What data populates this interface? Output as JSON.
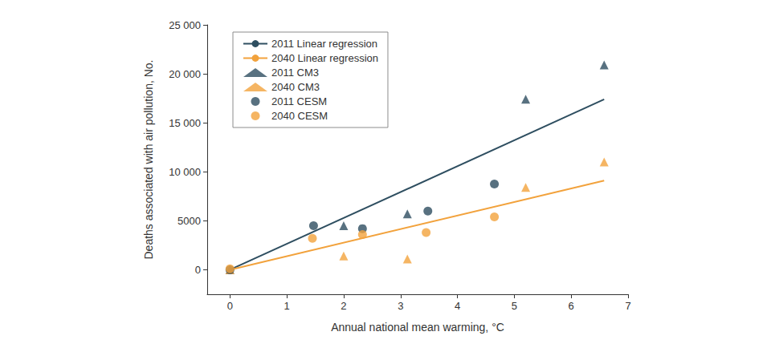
{
  "chart_data": {
    "type": "scatter",
    "x_label": "Annual national mean warming, °C",
    "y_label": "Deaths associated with air pollution, No.",
    "xlim": [
      -0.4,
      7
    ],
    "xticks": [
      0,
      1,
      2,
      3,
      4,
      5,
      6,
      7
    ],
    "ylim": [
      -2500,
      25000
    ],
    "yticks": [
      0,
      5000,
      {
        "value": 10000,
        "label": "10 000"
      },
      {
        "value": 15000,
        "label": "15 000"
      },
      {
        "value": 20000,
        "label": "20 000"
      },
      {
        "value": 25000,
        "label": "25 000"
      }
    ],
    "grid": false,
    "legend": "upper left",
    "series": [
      {
        "name": "2011 Linear regression",
        "type": "line",
        "line_style": "solid",
        "color": "#2e4e60",
        "x": [
          0,
          6.58
        ],
        "values": [
          0,
          17400
        ]
      },
      {
        "name": "2040 Linear regression",
        "type": "line",
        "line_style": "solid",
        "color": "#f2a23c",
        "x": [
          0,
          6.58
        ],
        "values": [
          0,
          9100
        ]
      },
      {
        "name": "2011 CM3",
        "type": "scatter",
        "marker": "triangle",
        "color": "#2e4e60",
        "x": [
          0,
          2.0,
          3.12,
          5.2,
          6.58
        ],
        "values": [
          0,
          4500,
          5700,
          17400,
          20900
        ]
      },
      {
        "name": "2040 CM3",
        "type": "scatter",
        "marker": "triangle",
        "color": "#f2a23c",
        "x": [
          0,
          2.0,
          3.12,
          5.2,
          6.58
        ],
        "values": [
          0,
          1400,
          1100,
          8400,
          11000
        ]
      },
      {
        "name": "2011 CESM",
        "type": "scatter",
        "marker": "circle",
        "color": "#2e4e60",
        "x": [
          0,
          1.47,
          2.33,
          3.48,
          4.65
        ],
        "values": [
          0,
          4500,
          4200,
          6000,
          8750
        ]
      },
      {
        "name": "2040 CESM",
        "type": "scatter",
        "marker": "circle",
        "color": "#f2a23c",
        "x": [
          0,
          1.45,
          2.33,
          3.45,
          4.65
        ],
        "values": [
          100,
          3200,
          3600,
          3800,
          5400
        ]
      }
    ]
  }
}
